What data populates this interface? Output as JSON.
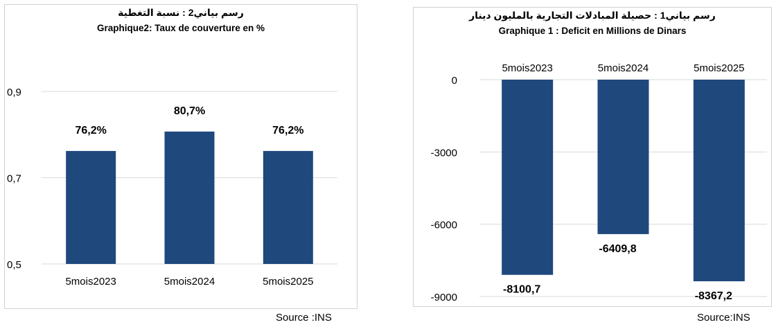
{
  "chart_data": [
    {
      "type": "bar",
      "title_ar": "رسم بياني2 : نسبة التغطية",
      "title": "Graphique2: Taux de couverture en %",
      "categories": [
        "5mois2023",
        "5mois2024",
        "5mois2025"
      ],
      "values": [
        0.762,
        0.807,
        0.762
      ],
      "data_labels": [
        "76,2%",
        "80,7%",
        "76,2%"
      ],
      "ylim": [
        0.5,
        0.9
      ],
      "yticks": [
        0.5,
        0.7,
        0.9
      ],
      "ytick_labels": [
        "0,5",
        "0,7",
        "0,9"
      ],
      "grid": true,
      "bar_color": "#1f497d"
    },
    {
      "type": "bar",
      "title_ar": "رسم بياني1 : حصيلة المبادلات التجارية بالمليون دينار",
      "title": "Graphique 1 : Deficit en Millions de Dinars",
      "categories": [
        "5mois2023",
        "5mois2024",
        "5mois2025"
      ],
      "values": [
        -8100.7,
        -6409.8,
        -8367.2
      ],
      "data_labels": [
        "-8100,7",
        "-6409,8",
        "-8367,2"
      ],
      "ylim": [
        -9000,
        0
      ],
      "yticks": [
        0,
        -3000,
        -6000,
        -9000
      ],
      "ytick_labels": [
        "0",
        "-3000",
        "-6000",
        "-9000"
      ],
      "grid": true,
      "bar_color": "#1f497d"
    }
  ],
  "sources": [
    "Source :INS",
    "Source:INS"
  ]
}
